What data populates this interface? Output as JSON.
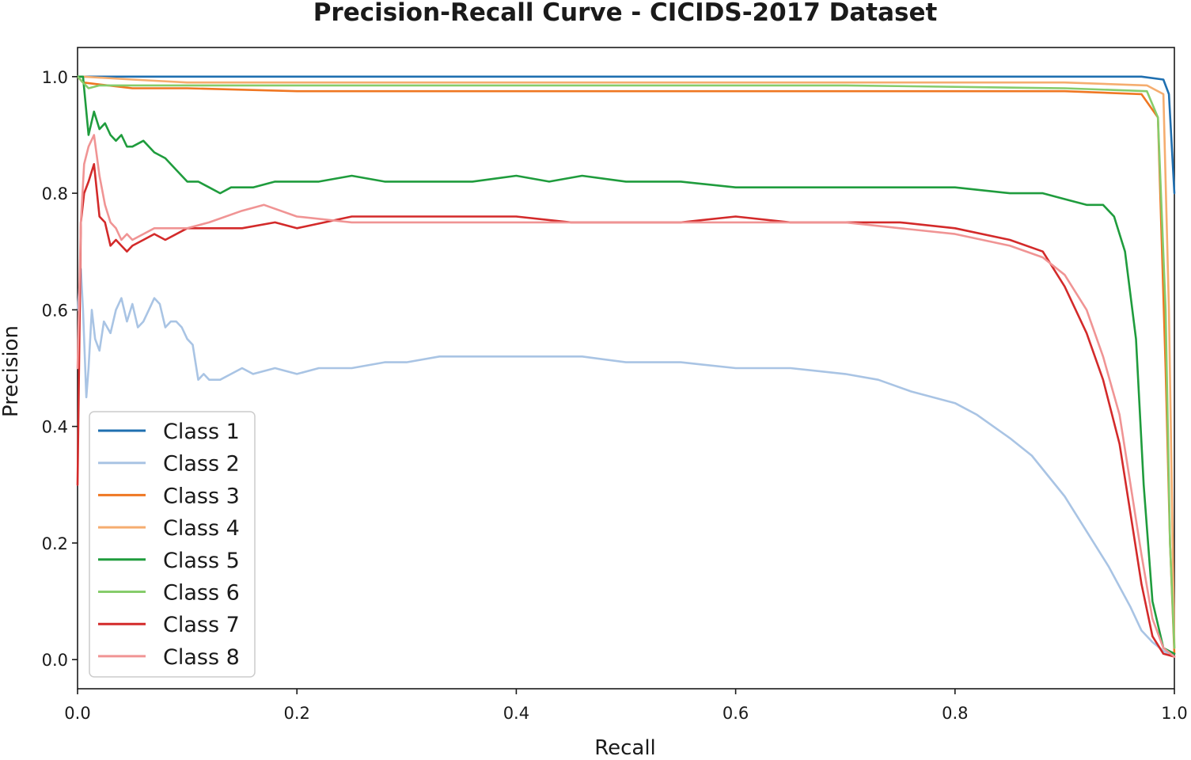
{
  "chart_data": {
    "type": "line",
    "title": "Precision-Recall Curve - CICIDS-2017 Dataset",
    "xlabel": "Recall",
    "ylabel": "Precision",
    "xlim": [
      0.0,
      1.0
    ],
    "ylim": [
      -0.05,
      1.05
    ],
    "xticks": [
      0.0,
      0.2,
      0.4,
      0.6,
      0.8,
      1.0
    ],
    "xtick_labels": [
      "0.0",
      "0.2",
      "0.4",
      "0.6",
      "0.8",
      "1.0"
    ],
    "yticks": [
      0.0,
      0.2,
      0.4,
      0.6,
      0.8,
      1.0
    ],
    "ytick_labels": [
      "0.0",
      "0.2",
      "0.4",
      "0.6",
      "0.8",
      "1.0"
    ],
    "grid": false,
    "legend_position": "lower-left",
    "series": [
      {
        "name": "Class 1",
        "color": "#1f6fb0",
        "x": [
          0.0,
          0.005,
          0.1,
          0.3,
          0.5,
          0.7,
          0.9,
          0.97,
          0.99,
          0.995,
          1.0
        ],
        "y": [
          1.0,
          1.0,
          1.0,
          1.0,
          1.0,
          1.0,
          1.0,
          1.0,
          0.995,
          0.97,
          0.8
        ]
      },
      {
        "name": "Class 2",
        "color": "#a9c4e4",
        "x": [
          0.0,
          0.003,
          0.005,
          0.008,
          0.01,
          0.013,
          0.016,
          0.02,
          0.024,
          0.03,
          0.035,
          0.04,
          0.045,
          0.05,
          0.055,
          0.06,
          0.065,
          0.07,
          0.075,
          0.08,
          0.085,
          0.09,
          0.095,
          0.1,
          0.105,
          0.11,
          0.115,
          0.12,
          0.13,
          0.14,
          0.15,
          0.16,
          0.18,
          0.2,
          0.22,
          0.25,
          0.28,
          0.3,
          0.33,
          0.36,
          0.38,
          0.4,
          0.43,
          0.46,
          0.5,
          0.55,
          0.6,
          0.65,
          0.7,
          0.73,
          0.76,
          0.8,
          0.82,
          0.85,
          0.87,
          0.9,
          0.92,
          0.94,
          0.96,
          0.97,
          0.98,
          0.99,
          1.0
        ],
        "y": [
          0.6,
          0.67,
          0.6,
          0.45,
          0.5,
          0.6,
          0.55,
          0.53,
          0.58,
          0.56,
          0.6,
          0.62,
          0.58,
          0.61,
          0.57,
          0.58,
          0.6,
          0.62,
          0.61,
          0.57,
          0.58,
          0.58,
          0.57,
          0.55,
          0.54,
          0.48,
          0.49,
          0.48,
          0.48,
          0.49,
          0.5,
          0.49,
          0.5,
          0.49,
          0.5,
          0.5,
          0.51,
          0.51,
          0.52,
          0.52,
          0.52,
          0.52,
          0.52,
          0.52,
          0.51,
          0.51,
          0.5,
          0.5,
          0.49,
          0.48,
          0.46,
          0.44,
          0.42,
          0.38,
          0.35,
          0.28,
          0.22,
          0.16,
          0.09,
          0.05,
          0.03,
          0.015,
          0.005
        ]
      },
      {
        "name": "Class 3",
        "color": "#ef7722",
        "x": [
          0.0,
          0.005,
          0.05,
          0.1,
          0.2,
          0.3,
          0.5,
          0.7,
          0.9,
          0.97,
          0.985,
          0.992,
          0.996,
          1.0
        ],
        "y": [
          1.0,
          0.99,
          0.98,
          0.98,
          0.975,
          0.975,
          0.975,
          0.975,
          0.975,
          0.97,
          0.93,
          0.5,
          0.2,
          0.01
        ]
      },
      {
        "name": "Class 4",
        "color": "#f5ad6f",
        "x": [
          0.0,
          0.005,
          0.05,
          0.1,
          0.3,
          0.5,
          0.7,
          0.9,
          0.975,
          0.99,
          0.995,
          1.0
        ],
        "y": [
          1.0,
          1.0,
          0.995,
          0.99,
          0.99,
          0.99,
          0.99,
          0.99,
          0.985,
          0.97,
          0.6,
          0.02
        ]
      },
      {
        "name": "Class 5",
        "color": "#1f9c3d",
        "x": [
          0.0,
          0.005,
          0.01,
          0.015,
          0.02,
          0.025,
          0.03,
          0.035,
          0.04,
          0.045,
          0.05,
          0.06,
          0.07,
          0.08,
          0.09,
          0.1,
          0.11,
          0.12,
          0.13,
          0.14,
          0.16,
          0.18,
          0.2,
          0.22,
          0.25,
          0.28,
          0.3,
          0.33,
          0.36,
          0.4,
          0.43,
          0.46,
          0.5,
          0.55,
          0.6,
          0.65,
          0.7,
          0.75,
          0.8,
          0.85,
          0.88,
          0.9,
          0.92,
          0.935,
          0.945,
          0.955,
          0.965,
          0.972,
          0.98,
          0.99,
          1.0
        ],
        "y": [
          1.0,
          1.0,
          0.9,
          0.94,
          0.91,
          0.92,
          0.9,
          0.89,
          0.9,
          0.88,
          0.88,
          0.89,
          0.87,
          0.86,
          0.84,
          0.82,
          0.82,
          0.81,
          0.8,
          0.81,
          0.81,
          0.82,
          0.82,
          0.82,
          0.83,
          0.82,
          0.82,
          0.82,
          0.82,
          0.83,
          0.82,
          0.83,
          0.82,
          0.82,
          0.81,
          0.81,
          0.81,
          0.81,
          0.81,
          0.8,
          0.8,
          0.79,
          0.78,
          0.78,
          0.76,
          0.7,
          0.55,
          0.3,
          0.1,
          0.02,
          0.01
        ]
      },
      {
        "name": "Class 6",
        "color": "#86cc6b",
        "x": [
          0.0,
          0.005,
          0.01,
          0.02,
          0.05,
          0.1,
          0.3,
          0.5,
          0.7,
          0.9,
          0.975,
          0.985,
          0.992,
          0.996,
          1.0
        ],
        "y": [
          1.0,
          0.99,
          0.98,
          0.985,
          0.985,
          0.985,
          0.985,
          0.985,
          0.985,
          0.98,
          0.975,
          0.93,
          0.6,
          0.2,
          0.02
        ]
      },
      {
        "name": "Class 7",
        "color": "#d32a2a",
        "x": [
          0.0,
          0.003,
          0.006,
          0.01,
          0.015,
          0.02,
          0.025,
          0.03,
          0.035,
          0.04,
          0.045,
          0.05,
          0.06,
          0.07,
          0.08,
          0.1,
          0.12,
          0.15,
          0.18,
          0.2,
          0.25,
          0.3,
          0.35,
          0.4,
          0.45,
          0.5,
          0.55,
          0.6,
          0.65,
          0.7,
          0.75,
          0.8,
          0.85,
          0.88,
          0.9,
          0.92,
          0.935,
          0.95,
          0.96,
          0.97,
          0.98,
          0.99,
          1.0
        ],
        "y": [
          0.3,
          0.75,
          0.8,
          0.82,
          0.85,
          0.76,
          0.75,
          0.71,
          0.72,
          0.71,
          0.7,
          0.71,
          0.72,
          0.73,
          0.72,
          0.74,
          0.74,
          0.74,
          0.75,
          0.74,
          0.76,
          0.76,
          0.76,
          0.76,
          0.75,
          0.75,
          0.75,
          0.76,
          0.75,
          0.75,
          0.75,
          0.74,
          0.72,
          0.7,
          0.64,
          0.56,
          0.48,
          0.37,
          0.25,
          0.13,
          0.04,
          0.01,
          0.005
        ]
      },
      {
        "name": "Class 8",
        "color": "#f09494",
        "x": [
          0.0,
          0.003,
          0.006,
          0.01,
          0.015,
          0.02,
          0.025,
          0.03,
          0.035,
          0.04,
          0.045,
          0.05,
          0.06,
          0.07,
          0.08,
          0.1,
          0.12,
          0.15,
          0.17,
          0.2,
          0.25,
          0.3,
          0.35,
          0.4,
          0.45,
          0.5,
          0.55,
          0.6,
          0.65,
          0.7,
          0.75,
          0.8,
          0.85,
          0.88,
          0.9,
          0.92,
          0.935,
          0.95,
          0.96,
          0.97,
          0.98,
          0.99,
          1.0
        ],
        "y": [
          0.5,
          0.75,
          0.85,
          0.88,
          0.9,
          0.83,
          0.78,
          0.75,
          0.74,
          0.72,
          0.73,
          0.72,
          0.73,
          0.74,
          0.74,
          0.74,
          0.75,
          0.77,
          0.78,
          0.76,
          0.75,
          0.75,
          0.75,
          0.75,
          0.75,
          0.75,
          0.75,
          0.75,
          0.75,
          0.75,
          0.74,
          0.73,
          0.71,
          0.69,
          0.66,
          0.6,
          0.52,
          0.42,
          0.3,
          0.18,
          0.07,
          0.02,
          0.005
        ]
      }
    ]
  }
}
